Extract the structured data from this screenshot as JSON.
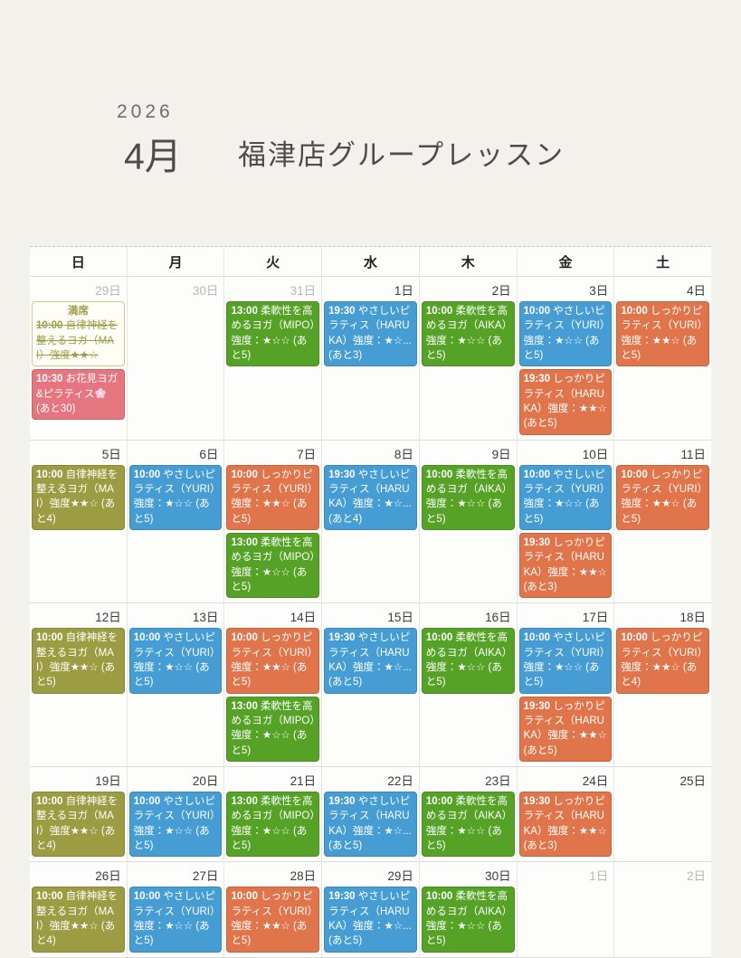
{
  "page": {
    "year": "2026",
    "month": "4月",
    "title": "福津店グループレッスン"
  },
  "calendar": {
    "weekdays": [
      "日",
      "月",
      "火",
      "水",
      "木",
      "金",
      "土"
    ],
    "colors": {
      "blue": "#459dd4",
      "orange": "#e0744b",
      "green": "#55a226",
      "olive": "#9c9c42",
      "pink": "#e5767f",
      "full_bg": "#fffef6",
      "full_border": "#cfc98c",
      "full_text": "#a09a4b"
    },
    "weeks": [
      [
        {
          "date": "29日",
          "outside": true,
          "events": [
            {
              "color": "full",
              "label": "満席",
              "time": "10:00",
              "text": "自律神経を整えるヨガ（MAI）強度★★☆"
            },
            {
              "color": "pink",
              "time": "10:30",
              "text": "お花見ヨガ&ピラティス",
              "icon": "cherry-blossom",
              "suffix": "(あと30)"
            }
          ]
        },
        {
          "date": "30日",
          "outside": true,
          "events": []
        },
        {
          "date": "31日",
          "outside": true,
          "events": [
            {
              "color": "green",
              "time": "13:00",
              "text": "柔軟性を高めるヨガ（MIPO）強度：★☆☆ (あと5)"
            }
          ]
        },
        {
          "date": "1日",
          "outside": false,
          "events": [
            {
              "color": "blue",
              "time": "19:30",
              "text": "やさしいピラティス（HARUKA）強度：★☆... (あと3)"
            }
          ]
        },
        {
          "date": "2日",
          "outside": false,
          "events": [
            {
              "color": "green",
              "time": "10:00",
              "text": "柔軟性を高めるヨガ（AIKA）強度：★☆☆ (あと5)"
            }
          ]
        },
        {
          "date": "3日",
          "outside": false,
          "events": [
            {
              "color": "blue",
              "time": "10:00",
              "text": "やさしいピラティス（YURI）強度：★☆☆ (あと5)"
            },
            {
              "color": "orange",
              "time": "19:30",
              "text": "しっかりピラティス（HARUKA）強度：★★☆ (あと5)"
            }
          ]
        },
        {
          "date": "4日",
          "outside": false,
          "events": [
            {
              "color": "orange",
              "time": "10:00",
              "text": "しっかりピラティス（YURI）強度：★★☆ (あと5)"
            }
          ]
        }
      ],
      [
        {
          "date": "5日",
          "outside": false,
          "events": [
            {
              "color": "olive",
              "time": "10:00",
              "text": "自律神経を整えるヨガ（MAI）強度★★☆ (あと4)"
            }
          ]
        },
        {
          "date": "6日",
          "outside": false,
          "events": [
            {
              "color": "blue",
              "time": "10:00",
              "text": "やさしいピラティス（YURI）強度：★☆☆ (あと5)"
            }
          ]
        },
        {
          "date": "7日",
          "outside": false,
          "events": [
            {
              "color": "orange",
              "time": "10:00",
              "text": "しっかりピラティス（YURI）強度：★★☆ (あと5)"
            },
            {
              "color": "green",
              "time": "13:00",
              "text": "柔軟性を高めるヨガ（MIPO）強度：★☆☆ (あと5)"
            }
          ]
        },
        {
          "date": "8日",
          "outside": false,
          "events": [
            {
              "color": "blue",
              "time": "19:30",
              "text": "やさしいピラティス（HARUKA）強度：★☆... (あと4)"
            }
          ]
        },
        {
          "date": "9日",
          "outside": false,
          "events": [
            {
              "color": "green",
              "time": "10:00",
              "text": "柔軟性を高めるヨガ（AIKA）強度：★☆☆ (あと5)"
            }
          ]
        },
        {
          "date": "10日",
          "outside": false,
          "events": [
            {
              "color": "blue",
              "time": "10:00",
              "text": "やさしいピラティス（YURI）強度：★☆☆ (あと5)"
            },
            {
              "color": "orange",
              "time": "19:30",
              "text": "しっかりピラティス（HARUKA）強度：★★☆ (あと3)"
            }
          ]
        },
        {
          "date": "11日",
          "outside": false,
          "events": [
            {
              "color": "orange",
              "time": "10:00",
              "text": "しっかりピラティス（YURI）強度：★★☆ (あと5)"
            }
          ]
        }
      ],
      [
        {
          "date": "12日",
          "outside": false,
          "events": [
            {
              "color": "olive",
              "time": "10:00",
              "text": "自律神経を整えるヨガ（MAI）強度★★☆ (あと5)"
            }
          ]
        },
        {
          "date": "13日",
          "outside": false,
          "events": [
            {
              "color": "blue",
              "time": "10:00",
              "text": "やさしいピラティス（YURI）強度：★☆☆ (あと5)"
            }
          ]
        },
        {
          "date": "14日",
          "outside": false,
          "events": [
            {
              "color": "orange",
              "time": "10:00",
              "text": "しっかりピラティス（YURI）強度：★★☆ (あと5)"
            },
            {
              "color": "green",
              "time": "13:00",
              "text": "柔軟性を高めるヨガ（MIPO）強度：★☆☆ (あと5)"
            }
          ]
        },
        {
          "date": "15日",
          "outside": false,
          "events": [
            {
              "color": "blue",
              "time": "19:30",
              "text": "やさしいピラティス（HARUKA）強度：★☆... (あと5)"
            }
          ]
        },
        {
          "date": "16日",
          "outside": false,
          "events": [
            {
              "color": "green",
              "time": "10:00",
              "text": "柔軟性を高めるヨガ（AIKA）強度：★☆☆ (あと5)"
            }
          ]
        },
        {
          "date": "17日",
          "outside": false,
          "events": [
            {
              "color": "blue",
              "time": "10:00",
              "text": "やさしいピラティス（YURI）強度：★☆☆ (あと5)"
            },
            {
              "color": "orange",
              "time": "19:30",
              "text": "しっかりピラティス（HARUKA）強度：★★☆ (あと5)"
            }
          ]
        },
        {
          "date": "18日",
          "outside": false,
          "events": [
            {
              "color": "orange",
              "time": "10:00",
              "text": "しっかりピラティス（YURI）強度：★★☆ (あと4)"
            }
          ]
        }
      ],
      [
        {
          "date": "19日",
          "outside": false,
          "events": [
            {
              "color": "olive",
              "time": "10:00",
              "text": "自律神経を整えるヨガ（MAI）強度★★☆ (あと4)"
            }
          ]
        },
        {
          "date": "20日",
          "outside": false,
          "events": [
            {
              "color": "blue",
              "time": "10:00",
              "text": "やさしいピラティス（YURI）強度：★☆☆ (あと5)"
            }
          ]
        },
        {
          "date": "21日",
          "outside": false,
          "events": [
            {
              "color": "green",
              "time": "13:00",
              "text": "柔軟性を高めるヨガ（MIPO）強度：★☆☆ (あと5)"
            }
          ]
        },
        {
          "date": "22日",
          "outside": false,
          "events": [
            {
              "color": "blue",
              "time": "19:30",
              "text": "やさしいピラティス（HARUKA）強度：★☆... (あと5)"
            }
          ]
        },
        {
          "date": "23日",
          "outside": false,
          "events": [
            {
              "color": "green",
              "time": "10:00",
              "text": "柔軟性を高めるヨガ（AIKA）強度：★☆☆ (あと5)"
            }
          ]
        },
        {
          "date": "24日",
          "outside": false,
          "events": [
            {
              "color": "orange",
              "time": "19:30",
              "text": "しっかりピラティス（HARUKA）強度：★★☆ (あと3)"
            }
          ]
        },
        {
          "date": "25日",
          "outside": false,
          "events": []
        }
      ],
      [
        {
          "date": "26日",
          "outside": false,
          "events": [
            {
              "color": "olive",
              "time": "10:00",
              "text": "自律神経を整えるヨガ（MAI）強度★★☆ (あと4)"
            }
          ]
        },
        {
          "date": "27日",
          "outside": false,
          "events": [
            {
              "color": "blue",
              "time": "10:00",
              "text": "やさしいピラティス（YURI）強度：★☆☆ (あと5)"
            }
          ]
        },
        {
          "date": "28日",
          "outside": false,
          "events": [
            {
              "color": "orange",
              "time": "10:00",
              "text": "しっかりピラティス（YURI）強度：★★☆ (あと5)"
            }
          ]
        },
        {
          "date": "29日",
          "outside": false,
          "events": [
            {
              "color": "blue",
              "time": "19:30",
              "text": "やさしいピラティス（HARUKA）強度：★☆... (あと5)"
            }
          ]
        },
        {
          "date": "30日",
          "outside": false,
          "events": [
            {
              "color": "green",
              "time": "10:00",
              "text": "柔軟性を高めるヨガ（AIKA）強度：★☆☆ (あと5)"
            }
          ]
        },
        {
          "date": "1日",
          "outside": true,
          "events": []
        },
        {
          "date": "2日",
          "outside": true,
          "events": []
        }
      ]
    ]
  }
}
